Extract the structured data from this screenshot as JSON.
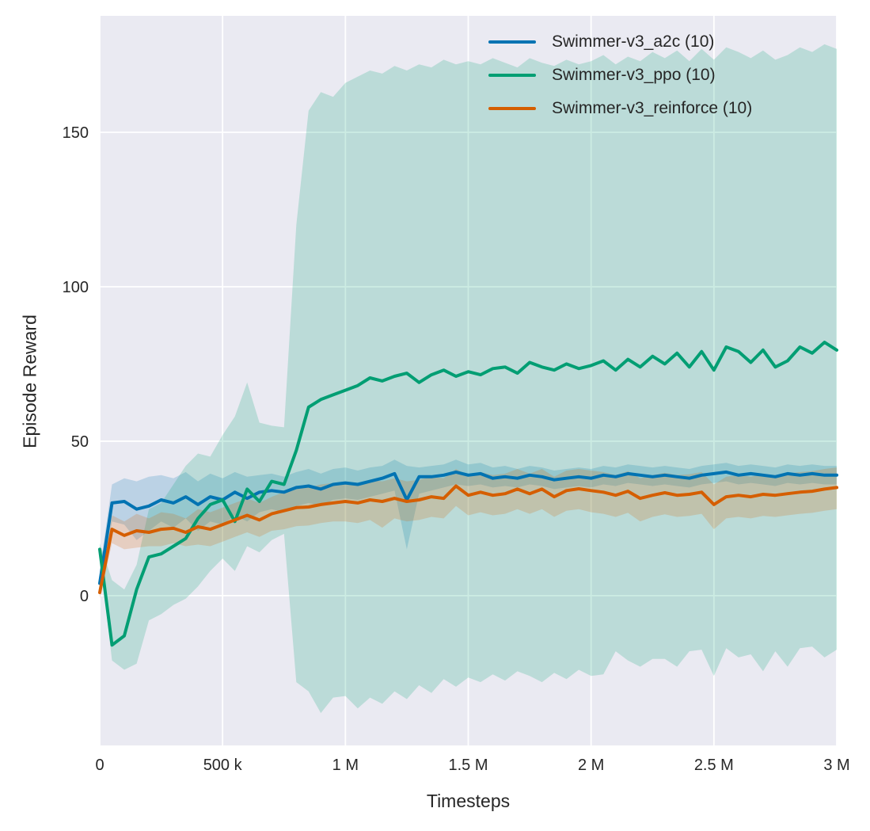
{
  "figure": {
    "background": "#ffffff",
    "plot_background": "#eaeaf2",
    "grid_color": "#ffffff",
    "text_color": "#262626"
  },
  "chart_data": {
    "type": "line",
    "title": "",
    "xlabel": "Timesteps",
    "ylabel": "Episode Reward",
    "x_unit": "millions of timesteps",
    "xlim": [
      0,
      3
    ],
    "ylim": [
      -48.5,
      187.7
    ],
    "grid": true,
    "legend_position": "upper right",
    "x_ticks": [
      {
        "v": 0,
        "label": "0"
      },
      {
        "v": 0.5,
        "label": "500 k"
      },
      {
        "v": 1,
        "label": "1 M"
      },
      {
        "v": 1.5,
        "label": "1.5 M"
      },
      {
        "v": 2,
        "label": "2 M"
      },
      {
        "v": 2.5,
        "label": "2.5 M"
      },
      {
        "v": 3,
        "label": "3 M"
      }
    ],
    "y_ticks": [
      {
        "v": 0,
        "label": "0"
      },
      {
        "v": 50,
        "label": "50"
      },
      {
        "v": 100,
        "label": "100"
      },
      {
        "v": 150,
        "label": "150"
      }
    ],
    "x": [
      0,
      0.05,
      0.1,
      0.15,
      0.2,
      0.25,
      0.3,
      0.35,
      0.4,
      0.45,
      0.5,
      0.55,
      0.6,
      0.65,
      0.7,
      0.75,
      0.8,
      0.85,
      0.9,
      0.95,
      1,
      1.05,
      1.1,
      1.15,
      1.2,
      1.25,
      1.3,
      1.35,
      1.4,
      1.45,
      1.5,
      1.55,
      1.6,
      1.65,
      1.7,
      1.75,
      1.8,
      1.85,
      1.9,
      1.95,
      2,
      2.05,
      2.1,
      2.15,
      2.2,
      2.25,
      2.3,
      2.35,
      2.4,
      2.45,
      2.5,
      2.55,
      2.6,
      2.65,
      2.7,
      2.75,
      2.8,
      2.85,
      2.9,
      2.95,
      3
    ],
    "series": [
      {
        "key": "a2c",
        "name": "Swimmer-v3_a2c (10)",
        "color": "#0173b2",
        "mean": [
          4,
          30,
          30.5,
          28,
          29,
          31,
          30,
          32,
          29.5,
          32,
          31,
          33.5,
          31.5,
          33.5,
          34,
          33.5,
          35,
          35.5,
          34.5,
          36,
          36.5,
          36,
          37,
          38,
          39.5,
          31,
          38.5,
          38.5,
          39,
          40,
          39,
          39.5,
          38,
          38.5,
          38,
          39,
          38.5,
          37.5,
          38,
          38.5,
          38,
          39,
          38.5,
          39.5,
          39,
          38.5,
          39,
          38.5,
          38,
          39,
          39.5,
          40,
          39,
          39.5,
          39,
          38.5,
          39.5,
          39,
          39.5,
          39,
          39
        ],
        "lo": [
          0,
          24,
          23,
          18,
          21,
          24,
          22,
          25,
          21,
          24,
          23,
          26,
          24,
          27,
          28,
          27,
          29,
          30,
          29,
          31,
          31.5,
          31,
          32,
          33,
          34,
          15,
          33,
          34,
          35,
          36,
          35.5,
          36,
          35,
          35.5,
          35,
          36,
          35.5,
          34.5,
          35,
          35.5,
          35,
          36,
          35.5,
          36.5,
          36,
          35.5,
          36,
          35.5,
          35,
          36,
          36.5,
          37,
          36,
          36.5,
          36,
          35.5,
          36.5,
          36,
          36.5,
          36,
          36
        ],
        "hi": [
          8,
          36,
          38,
          37,
          38.5,
          39,
          38,
          40,
          37,
          39.5,
          38,
          40,
          38.5,
          39,
          39.5,
          38.5,
          40,
          41,
          39.5,
          41,
          41.5,
          40.5,
          41.5,
          42,
          44,
          42,
          41.5,
          42,
          42.5,
          44,
          42.5,
          43,
          41.5,
          42,
          41,
          42,
          41.5,
          40.5,
          41,
          41.5,
          41,
          42,
          41.5,
          42.5,
          42,
          41.5,
          42,
          41.5,
          41,
          42,
          42.5,
          43,
          42,
          42.5,
          42,
          41.5,
          42.5,
          42,
          42.5,
          42,
          42
        ]
      },
      {
        "key": "ppo",
        "name": "Swimmer-v3_ppo (10)",
        "color": "#029e73",
        "mean": [
          15,
          -16,
          -13,
          2,
          12.5,
          13.5,
          16,
          18.5,
          25,
          29.5,
          31,
          24,
          34.5,
          30.5,
          37,
          36,
          47,
          61,
          63.5,
          65,
          66.5,
          68,
          70.5,
          69.5,
          71,
          72,
          69,
          71.5,
          73,
          71,
          72.5,
          71.5,
          73.5,
          74,
          72,
          75.5,
          74,
          73,
          75,
          73.5,
          74.5,
          76,
          73,
          76.5,
          74,
          77.5,
          75,
          78.5,
          74,
          79,
          73,
          80.5,
          79,
          75.5,
          79.5,
          74,
          76,
          80.5,
          78.5,
          82,
          79.5
        ],
        "lo": [
          13,
          -21,
          -24,
          -22,
          -8,
          -6,
          -3,
          -1,
          3,
          8,
          12,
          8,
          16,
          14,
          18,
          20,
          -28,
          -31,
          -38,
          -33,
          -32.5,
          -36.5,
          -33,
          -35,
          -31,
          -33.5,
          -29,
          -31.5,
          -27,
          -29.5,
          -26.5,
          -28,
          -25.5,
          -27.5,
          -24.5,
          -26,
          -28,
          -25,
          -27,
          -24,
          -26,
          -25.5,
          -18,
          -21,
          -23,
          -20.5,
          -20.5,
          -23,
          -18,
          -17.5,
          -26,
          -17,
          -20,
          -19,
          -24.5,
          -18,
          -23,
          -17,
          -16.5,
          -20,
          -17.5
        ],
        "hi": [
          17,
          5,
          2,
          10,
          28,
          30,
          36,
          42,
          46,
          45,
          52,
          58,
          69,
          56,
          55,
          54.5,
          120,
          157,
          163,
          161.5,
          166,
          168,
          170,
          169,
          171.5,
          170,
          172,
          171,
          173.5,
          172,
          173,
          172,
          174,
          172.5,
          171,
          174,
          172.5,
          171.5,
          173.5,
          172,
          173,
          175,
          172,
          174.5,
          173,
          176,
          174,
          176.5,
          173,
          177,
          173.5,
          177.5,
          176,
          174,
          176.5,
          173.5,
          175,
          177.5,
          176,
          178.5,
          177
        ]
      },
      {
        "key": "reinforce",
        "name": "Swimmer-v3_reinforce (10)",
        "color": "#d55e00",
        "mean": [
          1,
          21.5,
          19.5,
          21,
          20.5,
          21.5,
          21.8,
          20.5,
          22.3,
          21.5,
          23,
          24.5,
          26,
          24.5,
          26.5,
          27.5,
          28.5,
          28.7,
          29.5,
          30,
          30.5,
          30,
          31,
          30.5,
          31.5,
          30.5,
          31,
          32,
          31.5,
          35.5,
          32.5,
          33.5,
          32.5,
          33,
          34.5,
          33,
          34.5,
          32,
          34,
          34.6,
          34,
          33.5,
          32.5,
          33.8,
          31.5,
          32.5,
          33.3,
          32.5,
          32.8,
          33.5,
          29.5,
          32,
          32.5,
          32,
          32.8,
          32.5,
          33,
          33.5,
          33.8,
          34.5,
          35
        ],
        "lo": [
          -1,
          17,
          15,
          15.5,
          16,
          16,
          17,
          16,
          16.5,
          16,
          17.5,
          19,
          20.5,
          19,
          21,
          21.5,
          22.5,
          22.7,
          23.5,
          24,
          24,
          23.5,
          24.5,
          22,
          25,
          24,
          24.5,
          25.5,
          25,
          29,
          26,
          27,
          26,
          26.5,
          28,
          26.5,
          28,
          25.5,
          27.5,
          28,
          27,
          26.5,
          25.5,
          26.8,
          24,
          25.5,
          26.3,
          25.5,
          25.8,
          26.5,
          21.5,
          25,
          25.5,
          25,
          25.8,
          25.5,
          26,
          26.5,
          26.8,
          27.5,
          28
        ],
        "hi": [
          3,
          26,
          24,
          26.5,
          25,
          27,
          26.5,
          25,
          28,
          27,
          28.5,
          30,
          31.5,
          30,
          32,
          33.5,
          34.5,
          35,
          36,
          36.5,
          37,
          36.5,
          37.5,
          37,
          38,
          37,
          37.5,
          38.5,
          38,
          41,
          39,
          40,
          39,
          39.5,
          41,
          39.5,
          41,
          38.5,
          40.5,
          41,
          40.5,
          40,
          39,
          40.3,
          38,
          39,
          39.8,
          39,
          39.3,
          40,
          36,
          38.5,
          39,
          38.5,
          39.3,
          39,
          39.5,
          40,
          40.3,
          41,
          41.5
        ]
      }
    ]
  }
}
